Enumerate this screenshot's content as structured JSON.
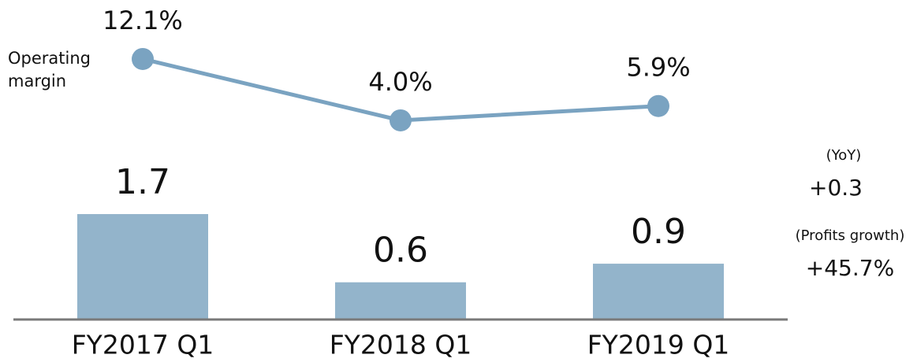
{
  "chart_data": [
    {
      "type": "bar",
      "categories": [
        "FY2017 Q1",
        "FY2018 Q1",
        "FY2019 Q1"
      ],
      "values": [
        1.7,
        0.6,
        0.9
      ],
      "color": "#93b4cb",
      "ylim": [
        0,
        2.5
      ],
      "annotations": [
        "(YoY)",
        "+0.3",
        "(Profits growth)",
        "+45.7%"
      ]
    },
    {
      "type": "line",
      "categories": [
        "FY2017 Q1",
        "FY2018 Q1",
        "FY2019 Q1"
      ],
      "series": [
        {
          "name": "Operating margin",
          "color": "#7aa3c1",
          "values": [
            12.1,
            4.0,
            5.9
          ],
          "value_labels": [
            "12.1%",
            "4.0%",
            "5.9%"
          ]
        }
      ],
      "ylim": [
        0,
        14
      ]
    }
  ]
}
